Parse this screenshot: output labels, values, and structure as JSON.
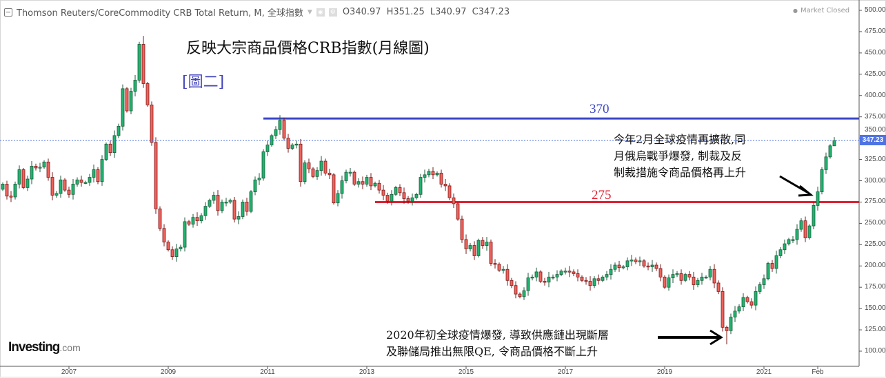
{
  "header": {
    "symbol_title": "Thomson Reuters/CoreCommodity CRB Total Return, M, 全球指數",
    "open": "O340.97",
    "high": "H351.25",
    "low": "L340.97",
    "close": "C347.23",
    "market_status": "Market Closed"
  },
  "annotations": {
    "title": "反映大宗商品價格CRB指數(月線圖)",
    "figure_label": "[圖二]",
    "level_high_label": "370",
    "level_low_label": "275",
    "note_2022": [
      "今年2月全球疫情再擴散,同",
      "月俄烏戰爭爆發, 制裁及反",
      "制裁措施令商品價格再上升"
    ],
    "note_2020": [
      "2020年初全球疫情爆發, 導致供應鏈出現斷層",
      "及聯儲局推出無限QE, 令商品價格不斷上升"
    ]
  },
  "logo": {
    "main": "Investing",
    "suffix": ".com"
  },
  "chart_data": {
    "type": "candlestick",
    "interval": "monthly",
    "start_month": "2005-09",
    "ylim": [
      100,
      500
    ],
    "y_ticks": [
      "500.00",
      "475.00",
      "450.00",
      "425.00",
      "400.00",
      "375.00",
      "350.00",
      "325.00",
      "300.00",
      "275.00",
      "250.00",
      "225.00",
      "200.00",
      "175.00",
      "150.00",
      "125.00",
      "100.00"
    ],
    "x_ticks": [
      {
        "label": "2007",
        "month": "2007-01"
      },
      {
        "label": "2009",
        "month": "2009-01"
      },
      {
        "label": "2011",
        "month": "2011-01"
      },
      {
        "label": "2013",
        "month": "2013-01"
      },
      {
        "label": "2015",
        "month": "2015-01"
      },
      {
        "label": "2017",
        "month": "2017-01"
      },
      {
        "label": "2019",
        "month": "2019-01"
      },
      {
        "label": "2021",
        "month": "2021-01"
      },
      {
        "label": "Feb",
        "month": "2022-02"
      }
    ],
    "last_price": "347.23",
    "last_candle": {
      "open": 340.97,
      "high": 351.25,
      "low": 340.97,
      "close": 347.23
    },
    "close": [
      296,
      282,
      281,
      296,
      313,
      292,
      302,
      317,
      315,
      316,
      322,
      304,
      283,
      285,
      301,
      289,
      284,
      296,
      301,
      298,
      298,
      304,
      313,
      299,
      325,
      343,
      333,
      353,
      364,
      408,
      382,
      405,
      418,
      460,
      414,
      389,
      345,
      267,
      244,
      228,
      219,
      211,
      220,
      222,
      252,
      249,
      257,
      253,
      259,
      270,
      277,
      283,
      265,
      275,
      275,
      277,
      255,
      258,
      275,
      264,
      287,
      301,
      303,
      334,
      342,
      353,
      360,
      371,
      350,
      338,
      342,
      343,
      299,
      321,
      314,
      305,
      312,
      323,
      309,
      307,
      274,
      285,
      300,
      310,
      310,
      296,
      299,
      296,
      304,
      294,
      297,
      289,
      283,
      276,
      284,
      292,
      286,
      279,
      276,
      280,
      284,
      304,
      307,
      311,
      307,
      309,
      296,
      294,
      280,
      273,
      255,
      231,
      220,
      224,
      212,
      230,
      224,
      228,
      203,
      202,
      195,
      196,
      183,
      177,
      167,
      164,
      171,
      186,
      187,
      193,
      182,
      181,
      187,
      187,
      190,
      194,
      194,
      193,
      191,
      187,
      183,
      182,
      177,
      185,
      183,
      187,
      190,
      196,
      201,
      198,
      199,
      206,
      207,
      205,
      206,
      200,
      199,
      201,
      197,
      187,
      175,
      186,
      190,
      191,
      183,
      190,
      187,
      178,
      183,
      187,
      187,
      196,
      180,
      170,
      128,
      124,
      140,
      147,
      152,
      163,
      158,
      154,
      170,
      178,
      185,
      203,
      197,
      212,
      219,
      226,
      231,
      231,
      243,
      253,
      233,
      247,
      271,
      287,
      313,
      328,
      340.97,
      347.23
    ],
    "horizontal_levels": [
      {
        "label": "370",
        "value": 373,
        "color": "#3b46c4",
        "from_month": "2010-12"
      },
      {
        "label": "275",
        "value": 275,
        "color": "#dd2233",
        "from_month": "2013-03"
      }
    ],
    "colors": {
      "up": "#1fb46e",
      "up_border": "#1d5a3b",
      "down": "#f0625a",
      "down_border": "#7a1a1a",
      "last_price": "#4f73e3"
    }
  }
}
